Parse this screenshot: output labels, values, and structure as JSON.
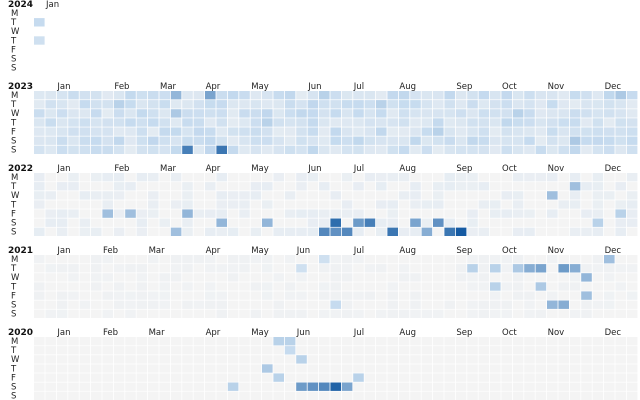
{
  "chart_data": {
    "type": "heatmap",
    "title": "",
    "color_scale": {
      "low": "#f4f4f4",
      "mid": "#c6dbef",
      "high": "#08519c"
    },
    "weekday_labels": [
      "M",
      "T",
      "W",
      "T",
      "F",
      "S",
      "S"
    ],
    "years": [
      {
        "year": "2024",
        "months": [
          {
            "label": "Jan",
            "week": 0
          }
        ],
        "weeks": 1,
        "base": 0.0,
        "fill_from": 0,
        "fill_to": 0,
        "empty_first_week": [
          2,
          4,
          5,
          6
        ],
        "highlights": [
          [
            0,
            1,
            0.25
          ],
          [
            0,
            3,
            0.2
          ]
        ]
      },
      {
        "year": "2023",
        "months": [
          {
            "label": "Jan",
            "week": 1
          },
          {
            "label": "Feb",
            "week": 6
          },
          {
            "label": "Mar",
            "week": 10
          },
          {
            "label": "Apr",
            "week": 14
          },
          {
            "label": "May",
            "week": 18
          },
          {
            "label": "Jun",
            "week": 23
          },
          {
            "label": "Jul",
            "week": 27
          },
          {
            "label": "Aug",
            "week": 31
          },
          {
            "label": "Sep",
            "week": 36
          },
          {
            "label": "Oct",
            "week": 40
          },
          {
            "label": "Nov",
            "week": 44
          },
          {
            "label": "Dec",
            "week": 49
          }
        ],
        "weeks": 53,
        "base": 0.18,
        "fill_from": 0,
        "fill_to": 52,
        "empty_first_week": [],
        "highlights": [
          [
            12,
            0,
            0.45
          ],
          [
            15,
            0,
            0.55
          ],
          [
            12,
            2,
            0.35
          ],
          [
            13,
            6,
            0.75
          ],
          [
            16,
            6,
            0.8
          ],
          [
            7,
            1,
            0.3
          ],
          [
            20,
            3,
            0.3
          ],
          [
            25,
            0,
            0.3
          ],
          [
            30,
            1,
            0.3
          ],
          [
            35,
            4,
            0.3
          ],
          [
            42,
            2,
            0.3
          ],
          [
            47,
            5,
            0.35
          ],
          [
            51,
            0,
            0.35
          ]
        ]
      },
      {
        "year": "2022",
        "months": [
          {
            "label": "Jan",
            "week": 1
          },
          {
            "label": "Feb",
            "week": 6
          },
          {
            "label": "Mar",
            "week": 10
          },
          {
            "label": "Apr",
            "week": 14
          },
          {
            "label": "May",
            "week": 18
          },
          {
            "label": "Jun",
            "week": 23
          },
          {
            "label": "Jul",
            "week": 27
          },
          {
            "label": "Aug",
            "week": 31
          },
          {
            "label": "Sep",
            "week": 36
          },
          {
            "label": "Oct",
            "week": 40
          },
          {
            "label": "Nov",
            "week": 44
          },
          {
            "label": "Dec",
            "week": 49
          }
        ],
        "weeks": 53,
        "base": 0.05,
        "fill_from": 0,
        "fill_to": 52,
        "empty_first_week": [],
        "highlights": [
          [
            25,
            6,
            0.7
          ],
          [
            26,
            6,
            0.65
          ],
          [
            27,
            6,
            0.7
          ],
          [
            26,
            5,
            0.85
          ],
          [
            28,
            5,
            0.6
          ],
          [
            29,
            5,
            0.75
          ],
          [
            31,
            6,
            0.8
          ],
          [
            33,
            5,
            0.55
          ],
          [
            35,
            5,
            0.65
          ],
          [
            36,
            6,
            0.8
          ],
          [
            37,
            6,
            0.95
          ],
          [
            34,
            6,
            0.5
          ],
          [
            12,
            6,
            0.4
          ],
          [
            13,
            4,
            0.45
          ],
          [
            16,
            5,
            0.45
          ],
          [
            6,
            4,
            0.4
          ],
          [
            8,
            4,
            0.4
          ],
          [
            20,
            5,
            0.45
          ],
          [
            45,
            2,
            0.4
          ],
          [
            47,
            1,
            0.4
          ],
          [
            49,
            5,
            0.3
          ],
          [
            51,
            4,
            0.3
          ]
        ]
      },
      {
        "year": "2021",
        "months": [
          {
            "label": "Jan",
            "week": 1
          },
          {
            "label": "Feb",
            "week": 5
          },
          {
            "label": "Mar",
            "week": 9
          },
          {
            "label": "Apr",
            "week": 14
          },
          {
            "label": "May",
            "week": 18
          },
          {
            "label": "Jun",
            "week": 22
          },
          {
            "label": "Jul",
            "week": 27
          },
          {
            "label": "Aug",
            "week": 31
          },
          {
            "label": "Sep",
            "week": 36
          },
          {
            "label": "Oct",
            "week": 40
          },
          {
            "label": "Nov",
            "week": 44
          },
          {
            "label": "Dec",
            "week": 49
          }
        ],
        "weeks": 53,
        "base": 0.02,
        "fill_from": 0,
        "fill_to": 52,
        "empty_first_week": [],
        "highlights": [
          [
            43,
            1,
            0.5
          ],
          [
            44,
            1,
            0.55
          ],
          [
            46,
            1,
            0.6
          ],
          [
            47,
            1,
            0.5
          ],
          [
            48,
            2,
            0.45
          ],
          [
            45,
            5,
            0.45
          ],
          [
            46,
            5,
            0.5
          ],
          [
            48,
            4,
            0.4
          ],
          [
            50,
            0,
            0.4
          ],
          [
            38,
            1,
            0.3
          ],
          [
            40,
            1,
            0.3
          ],
          [
            42,
            1,
            0.35
          ],
          [
            25,
            0,
            0.2
          ],
          [
            23,
            1,
            0.2
          ],
          [
            26,
            5,
            0.25
          ],
          [
            40,
            3,
            0.3
          ],
          [
            44,
            3,
            0.35
          ]
        ]
      },
      {
        "year": "2020",
        "months": [
          {
            "label": "Jan",
            "week": 1
          },
          {
            "label": "Feb",
            "week": 5
          },
          {
            "label": "Mar",
            "week": 9
          },
          {
            "label": "Apr",
            "week": 14
          },
          {
            "label": "May",
            "week": 18
          },
          {
            "label": "Jun",
            "week": 22
          },
          {
            "label": "Jul",
            "week": 27
          },
          {
            "label": "Aug",
            "week": 31
          },
          {
            "label": "Sep",
            "week": 36
          },
          {
            "label": "Oct",
            "week": 40
          },
          {
            "label": "Nov",
            "week": 44
          },
          {
            "label": "Dec",
            "week": 49
          }
        ],
        "weeks": 53,
        "base": 0.0,
        "fill_from": 11,
        "fill_to": 38,
        "empty_first_week": [],
        "highlights": [
          [
            21,
            0,
            0.3
          ],
          [
            22,
            0,
            0.3
          ],
          [
            22,
            1,
            0.25
          ],
          [
            23,
            5,
            0.6
          ],
          [
            24,
            5,
            0.65
          ],
          [
            25,
            5,
            0.7
          ],
          [
            26,
            5,
            0.9
          ],
          [
            27,
            5,
            0.55
          ],
          [
            21,
            4,
            0.3
          ],
          [
            20,
            3,
            0.35
          ],
          [
            23,
            2,
            0.3
          ],
          [
            17,
            5,
            0.3
          ],
          [
            28,
            4,
            0.3
          ]
        ]
      }
    ]
  }
}
